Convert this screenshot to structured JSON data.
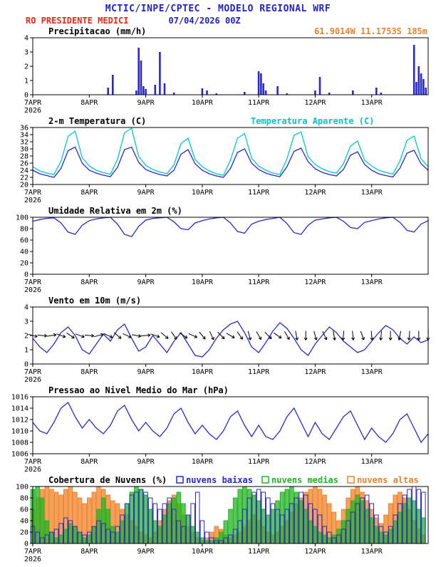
{
  "header": {
    "title": "MCTIC/INPE/CPTEC - MODELO REGIONAL WRF",
    "station": "RO PRESIDENTE MEDICI",
    "run": "07/04/2026 00Z",
    "location": "61.9014W 11.1753S 185m"
  },
  "colors": {
    "header_blue": "#2222cc",
    "station_red": "#e82814",
    "location_orange": "#f08228",
    "series_blue": "#2929cc",
    "apparent_cyan": "#00c8c8",
    "cloud_green": "#22b422",
    "cloud_orange": "#f08228",
    "axis_black": "#000000"
  },
  "x_axis": {
    "hours_total": 168,
    "tick_hours": [
      0,
      24,
      48,
      72,
      96,
      120,
      144
    ],
    "tick_labels": [
      "7APR",
      "8APR",
      "9APR",
      "10APR",
      "11APR",
      "12APR",
      "13APR"
    ],
    "year_label": "2026"
  },
  "chart_data": [
    {
      "type": "bar",
      "title": "Precipitacao (mm/h)",
      "ylim": [
        0,
        4
      ],
      "yticks": [
        0,
        1,
        2,
        3,
        4
      ],
      "series": [
        {
          "name": "precipitation",
          "color": "#2929cc",
          "points": [
            [
              32,
              0.5
            ],
            [
              34,
              1.4
            ],
            [
              44,
              0.3
            ],
            [
              45,
              3.3
            ],
            [
              46,
              2.4
            ],
            [
              47,
              0.6
            ],
            [
              48,
              0.4
            ],
            [
              52,
              0.7
            ],
            [
              54,
              3.0
            ],
            [
              56,
              0.8
            ],
            [
              60,
              0.15
            ],
            [
              72,
              0.45
            ],
            [
              74,
              0.3
            ],
            [
              78,
              0.1
            ],
            [
              90,
              0.2
            ],
            [
              96,
              1.65
            ],
            [
              97,
              1.5
            ],
            [
              98,
              0.8
            ],
            [
              99,
              0.3
            ],
            [
              104,
              0.6
            ],
            [
              108,
              0.1
            ],
            [
              120,
              0.3
            ],
            [
              122,
              1.25
            ],
            [
              126,
              0.15
            ],
            [
              136,
              0.3
            ],
            [
              146,
              0.5
            ],
            [
              148,
              0.15
            ],
            [
              162,
              3.5
            ],
            [
              163,
              0.9
            ],
            [
              164,
              2.0
            ],
            [
              165,
              1.5
            ],
            [
              166,
              1.1
            ],
            [
              167,
              0.5
            ]
          ]
        }
      ]
    },
    {
      "type": "line",
      "title": "2-m Temperatura (C)",
      "right_label": "Temperatura Aparente (C)",
      "ylim": [
        20,
        36
      ],
      "yticks": [
        20,
        22,
        24,
        26,
        28,
        30,
        32,
        34,
        36
      ],
      "step_hours": 3,
      "series": [
        {
          "name": "2m-temperature",
          "color": "#2929cc",
          "values": [
            24.0,
            23.0,
            22.5,
            22.0,
            24.5,
            29.5,
            30.5,
            26.0,
            24.0,
            23.2,
            22.6,
            22.2,
            24.8,
            29.8,
            30.5,
            26.2,
            24.2,
            23.4,
            22.8,
            22.4,
            24.0,
            28.5,
            29.8,
            25.8,
            24.0,
            23.0,
            22.4,
            22.0,
            24.5,
            29.0,
            30.0,
            26.0,
            24.2,
            23.2,
            22.6,
            22.2,
            25.0,
            29.3,
            30.2,
            26.4,
            24.4,
            23.4,
            22.8,
            22.4,
            24.2,
            28.2,
            29.2,
            25.6,
            24.0,
            23.0,
            22.5,
            22.1,
            24.6,
            28.8,
            29.6,
            25.8,
            24.0
          ]
        },
        {
          "name": "apparent-temperature",
          "color": "#00c8c8",
          "values": [
            25.0,
            23.8,
            23.2,
            22.8,
            26.5,
            33.5,
            35.0,
            27.5,
            25.2,
            24.0,
            23.3,
            22.9,
            27.0,
            34.5,
            35.8,
            27.8,
            25.4,
            24.2,
            23.5,
            23.0,
            25.5,
            31.5,
            33.0,
            27.0,
            25.0,
            23.8,
            23.0,
            22.6,
            26.8,
            33.0,
            34.3,
            27.4,
            25.2,
            24.0,
            23.2,
            22.8,
            27.2,
            33.8,
            34.8,
            27.8,
            25.6,
            24.4,
            23.6,
            23.2,
            25.8,
            30.8,
            32.2,
            26.8,
            25.2,
            24.0,
            23.4,
            22.9,
            26.6,
            32.4,
            33.6,
            27.2,
            25.0
          ]
        }
      ]
    },
    {
      "type": "line",
      "title": "Umidade Relativa em 2m (%)",
      "ylim": [
        0,
        100
      ],
      "yticks": [
        0,
        20,
        40,
        60,
        80,
        100
      ],
      "step_hours": 3,
      "series": [
        {
          "name": "relative-humidity-2m",
          "color": "#2929cc",
          "values": [
            93,
            96,
            98,
            99,
            90,
            74,
            70,
            86,
            94,
            97,
            99,
            100,
            88,
            70,
            66,
            84,
            95,
            98,
            99,
            100,
            92,
            80,
            78,
            90,
            94,
            97,
            99,
            100,
            90,
            75,
            72,
            88,
            93,
            96,
            98,
            100,
            89,
            73,
            70,
            86,
            95,
            97,
            99,
            100,
            93,
            82,
            80,
            91,
            94,
            97,
            99,
            100,
            91,
            77,
            74,
            88,
            94
          ]
        }
      ]
    },
    {
      "type": "line",
      "title": "Vento em 10m (m/s)",
      "ylim": [
        0,
        4
      ],
      "yticks": [
        0,
        1,
        2,
        3,
        4
      ],
      "step_hours": 3,
      "series": [
        {
          "name": "wind-speed-10m",
          "color": "#2929cc",
          "values": [
            1.8,
            1.2,
            0.8,
            1.4,
            2.2,
            2.6,
            2.0,
            1.0,
            0.7,
            1.4,
            2.1,
            1.6,
            2.4,
            2.8,
            1.8,
            0.9,
            1.2,
            2.0,
            1.4,
            0.8,
            1.6,
            2.2,
            1.4,
            0.6,
            0.5,
            1.0,
            1.8,
            2.4,
            2.8,
            3.0,
            2.2,
            1.2,
            0.8,
            1.5,
            2.3,
            2.9,
            2.5,
            1.8,
            1.0,
            0.6,
            1.4,
            2.0,
            2.6,
            2.2,
            1.6,
            1.2,
            0.8,
            1.0,
            1.6,
            2.2,
            2.7,
            2.4,
            1.8,
            1.4,
            1.9,
            1.5,
            1.7
          ]
        }
      ],
      "arrows": {
        "name": "wind-direction-vectors",
        "step_hours": 4,
        "y": 2,
        "angles_deg": [
          15,
          5,
          -10,
          20,
          35,
          20,
          5,
          -15,
          25,
          40,
          25,
          10,
          -5,
          20,
          40,
          55,
          35,
          25,
          50,
          65,
          45,
          30,
          55,
          75,
          60,
          45,
          35,
          60,
          80,
          90,
          75,
          65,
          80,
          95,
          85,
          70,
          85,
          95,
          90,
          100,
          95,
          90,
          92
        ]
      }
    },
    {
      "type": "line",
      "title": "Pressao ao Nivel Medio do Mar (hPa)",
      "ylim": [
        1006,
        1016
      ],
      "yticks": [
        1006,
        1008,
        1010,
        1012,
        1014,
        1016
      ],
      "step_hours": 3,
      "series": [
        {
          "name": "mean-sea-level-pressure",
          "color": "#2929cc",
          "values": [
            1011.5,
            1010.0,
            1009.5,
            1011.5,
            1014.0,
            1015.0,
            1012.5,
            1010.5,
            1012.0,
            1010.5,
            1009.5,
            1011.0,
            1013.5,
            1014.5,
            1012.0,
            1010.0,
            1011.5,
            1010.0,
            1009.0,
            1010.5,
            1013.0,
            1014.0,
            1011.5,
            1009.5,
            1011.0,
            1009.5,
            1008.5,
            1010.0,
            1012.5,
            1013.5,
            1011.0,
            1009.0,
            1011.0,
            1009.0,
            1008.5,
            1010.0,
            1012.5,
            1014.0,
            1011.5,
            1009.0,
            1011.5,
            1009.5,
            1008.5,
            1010.5,
            1012.5,
            1013.5,
            1011.0,
            1008.5,
            1010.5,
            1009.0,
            1008.0,
            1009.5,
            1012.0,
            1013.0,
            1010.5,
            1008.0,
            1009.5
          ]
        }
      ]
    },
    {
      "type": "bars3",
      "title": "Cobertura de Nuvens (%)",
      "legend": [
        {
          "label": "nuvens baixas"
        },
        {
          "label": "nuvens medias"
        },
        {
          "label": "nuvens altas"
        }
      ],
      "ylim": [
        0,
        100
      ],
      "yticks": [
        0,
        20,
        40,
        60,
        80,
        100
      ],
      "step_hours": 2,
      "series": [
        {
          "name": "low-clouds",
          "color": "#2929cc",
          "fill": "hollow",
          "values": [
            30,
            20,
            10,
            15,
            20,
            25,
            35,
            45,
            40,
            30,
            20,
            15,
            20,
            30,
            40,
            35,
            25,
            20,
            30,
            50,
            70,
            85,
            90,
            95,
            90,
            80,
            70,
            60,
            70,
            80,
            60,
            40,
            30,
            50,
            70,
            90,
            40,
            20,
            10,
            5,
            5,
            10,
            15,
            25,
            40,
            60,
            80,
            90,
            95,
            90,
            80,
            70,
            60,
            50,
            60,
            70,
            80,
            90,
            85,
            70,
            60,
            50,
            30,
            20,
            10,
            15,
            25,
            40,
            55,
            70,
            80,
            85,
            70,
            50,
            30,
            20,
            30,
            50,
            70,
            85,
            95,
            100,
            95,
            90
          ]
        },
        {
          "name": "mid-clouds",
          "color": "#22b422",
          "fill": "solid",
          "values": [
            95,
            100,
            80,
            40,
            20,
            10,
            15,
            25,
            35,
            30,
            20,
            10,
            15,
            30,
            60,
            80,
            60,
            30,
            20,
            40,
            70,
            90,
            100,
            95,
            85,
            60,
            40,
            30,
            50,
            70,
            80,
            90,
            70,
            50,
            30,
            20,
            10,
            5,
            5,
            10,
            20,
            40,
            60,
            80,
            95,
            100,
            95,
            85,
            75,
            60,
            50,
            60,
            75,
            90,
            95,
            100,
            90,
            75,
            60,
            40,
            30,
            20,
            15,
            10,
            15,
            25,
            40,
            60,
            75,
            85,
            75,
            60,
            45,
            30,
            20,
            15,
            25,
            40,
            55,
            70,
            80,
            75,
            60,
            45
          ]
        },
        {
          "name": "high-clouds",
          "color": "#f08228",
          "fill": "solid",
          "values": [
            60,
            80,
            95,
            100,
            95,
            90,
            85,
            95,
            100,
            90,
            80,
            70,
            80,
            90,
            100,
            95,
            85,
            75,
            70,
            60,
            50,
            40,
            30,
            20,
            15,
            10,
            20,
            40,
            60,
            75,
            85,
            70,
            50,
            30,
            20,
            10,
            5,
            10,
            20,
            30,
            25,
            15,
            10,
            15,
            20,
            30,
            40,
            50,
            40,
            30,
            20,
            15,
            20,
            30,
            40,
            55,
            70,
            80,
            90,
            95,
            100,
            95,
            85,
            70,
            55,
            40,
            60,
            80,
            95,
            100,
            90,
            75,
            60,
            45,
            35,
            50,
            70,
            85,
            90,
            80,
            60,
            40,
            25,
            15
          ]
        }
      ]
    }
  ]
}
